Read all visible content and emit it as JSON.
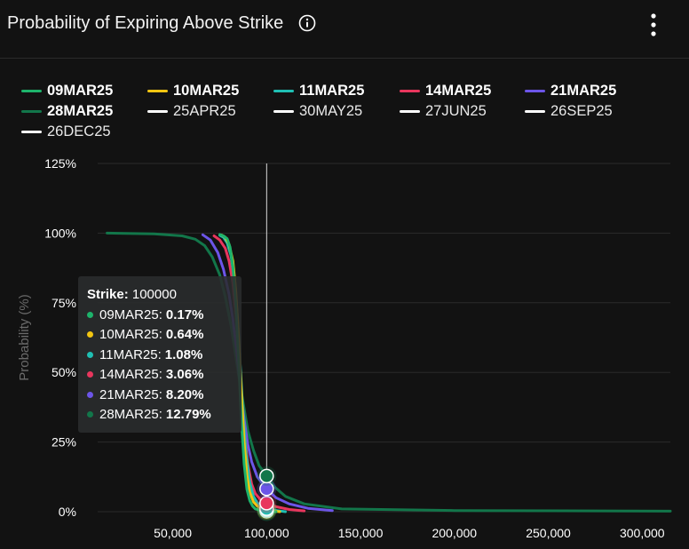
{
  "header": {
    "title": "Probability of Expiring Above Strike",
    "info_icon": "info-circle-icon",
    "menu_icon": "kebab-menu-icon"
  },
  "colors": {
    "background": "#121212",
    "grid": "#2b2b2b",
    "cursor": "#d9d9d9"
  },
  "chart_data": {
    "type": "line",
    "title": "Probability of Expiring Above Strike",
    "xlabel": "",
    "ylabel": "Probability (%)",
    "xlim": [
      10000,
      315000
    ],
    "ylim": [
      0,
      125
    ],
    "x_ticks": [
      50000,
      100000,
      150000,
      200000,
      250000,
      300000
    ],
    "x_tick_labels": [
      "50,000",
      "100,000",
      "150,000",
      "200,000",
      "250,000",
      "300,000"
    ],
    "y_ticks": [
      0,
      25,
      50,
      75,
      100,
      125
    ],
    "y_tick_labels": [
      "0%",
      "25%",
      "50%",
      "75%",
      "100%",
      "125%"
    ],
    "grid": true,
    "legend_position": "top",
    "cursor_x": 100000,
    "series": [
      {
        "name": "09MAR25",
        "color": "#1db36b",
        "bold": true,
        "x": [
          75000,
          77000,
          79000,
          80500,
          82000,
          83500,
          85000,
          86500,
          88000,
          89500,
          91000,
          92500,
          94000,
          96000,
          98000,
          100000,
          102000,
          105000
        ],
        "y": [
          99.5,
          99,
          98,
          95,
          88,
          75,
          55,
          33,
          17,
          8,
          4,
          2,
          1,
          0.6,
          0.3,
          0.17,
          0.08,
          0
        ]
      },
      {
        "name": "10MAR25",
        "color": "#f2c511",
        "bold": true,
        "x": [
          76000,
          78000,
          80000,
          82000,
          83500,
          85000,
          86500,
          88000,
          89500,
          91000,
          93000,
          95000,
          97000,
          100000,
          103000,
          107000
        ],
        "y": [
          99.3,
          98.5,
          96,
          90,
          80,
          63,
          43,
          25,
          13,
          7,
          3.5,
          2,
          1.2,
          0.64,
          0.3,
          0
        ]
      },
      {
        "name": "11MAR25",
        "color": "#1fbfb3",
        "bold": true,
        "x": [
          75000,
          77000,
          79000,
          81000,
          83000,
          84500,
          86000,
          87500,
          89000,
          91000,
          93000,
          95000,
          97000,
          100000,
          104000,
          110000
        ],
        "y": [
          99.2,
          98.5,
          96.5,
          92,
          83,
          70,
          52,
          34,
          21,
          10.5,
          5.5,
          3.2,
          2,
          1.08,
          0.5,
          0
        ]
      },
      {
        "name": "14MAR25",
        "color": "#e8365d",
        "bold": true,
        "x": [
          72000,
          75000,
          78000,
          80000,
          82000,
          84000,
          85500,
          87000,
          88500,
          90000,
          92000,
          94000,
          96500,
          100000,
          105000,
          112000,
          120000
        ],
        "y": [
          99,
          97.5,
          94.5,
          90,
          82,
          68,
          54,
          38,
          26,
          17,
          10,
          6.5,
          4.5,
          3.06,
          1.8,
          0.8,
          0.3
        ]
      },
      {
        "name": "21MAR25",
        "color": "#6c55e8",
        "bold": true,
        "x": [
          66000,
          70000,
          74000,
          77000,
          80000,
          82000,
          84000,
          86000,
          88000,
          90000,
          92000,
          95000,
          100000,
          105000,
          112000,
          122000,
          135000
        ],
        "y": [
          99.4,
          97.5,
          93,
          87,
          78,
          69,
          58,
          45,
          33,
          24,
          18,
          12.5,
          8.2,
          5,
          2.8,
          1.2,
          0.4
        ]
      },
      {
        "name": "28MAR25",
        "color": "#12764a",
        "bold": true,
        "x": [
          15000,
          25000,
          40000,
          55000,
          62000,
          67000,
          71000,
          75000,
          78000,
          81000,
          83500,
          86000,
          88000,
          90000,
          93000,
          96000,
          100000,
          104000,
          110000,
          120000,
          140000,
          200000,
          315000
        ],
        "y": [
          100,
          99.9,
          99.7,
          99,
          97.8,
          95.5,
          91.5,
          85,
          77,
          67,
          56,
          45,
          37,
          29,
          22,
          16.5,
          12.79,
          9,
          5.5,
          2.8,
          1,
          0.4,
          0.2
        ]
      },
      {
        "name": "25APR25",
        "color": "#ffffff",
        "bold": false,
        "x": [],
        "y": []
      },
      {
        "name": "30MAY25",
        "color": "#ffffff",
        "bold": false,
        "x": [],
        "y": []
      },
      {
        "name": "27JUN25",
        "color": "#ffffff",
        "bold": false,
        "x": [],
        "y": []
      },
      {
        "name": "26SEP25",
        "color": "#ffffff",
        "bold": false,
        "x": [],
        "y": []
      },
      {
        "name": "26DEC25",
        "color": "#ffffff",
        "bold": false,
        "x": [],
        "y": []
      }
    ],
    "tooltip": {
      "strike_label": "Strike:",
      "strike_value": "100000",
      "rows": [
        {
          "date": "09MAR25",
          "value": "0.17%",
          "color": "#1db36b"
        },
        {
          "date": "10MAR25",
          "value": "0.64%",
          "color": "#f2c511"
        },
        {
          "date": "11MAR25",
          "value": "1.08%",
          "color": "#1fbfb3"
        },
        {
          "date": "14MAR25",
          "value": "3.06%",
          "color": "#e8365d"
        },
        {
          "date": "21MAR25",
          "value": "8.20%",
          "color": "#6c55e8"
        },
        {
          "date": "28MAR25",
          "value": "12.79%",
          "color": "#12764a"
        }
      ]
    }
  }
}
